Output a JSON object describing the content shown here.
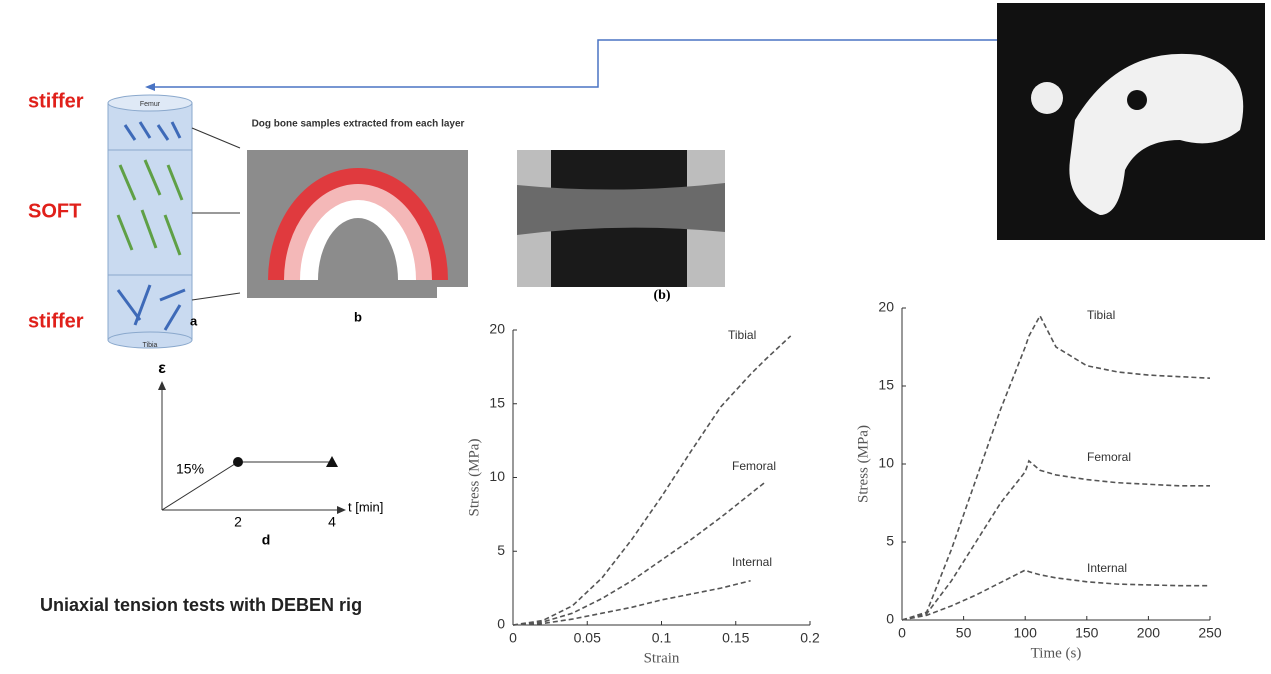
{
  "labels": {
    "top": "stiffer",
    "middle": "SOFT",
    "bottom": "stiffer",
    "femur": "Femur",
    "tibia": "Tibia",
    "panel_a": "a",
    "panel_b": "b",
    "panel_d": "d",
    "dog_bone": "Dog bone samples extracted from each layer",
    "photo_b": "(b)",
    "epsilon": "ε",
    "strain_level": "15%",
    "t_tick_1": "2",
    "t_tick_2": "4",
    "t_axis": "t [min]",
    "caption": "Uniaxial tension tests with DEBEN rig"
  },
  "chart_data": [
    {
      "type": "line",
      "xlabel": "Strain",
      "ylabel": "Stress (MPa)",
      "x": [
        0,
        0.02,
        0.04,
        0.06,
        0.08,
        0.1,
        0.12,
        0.14,
        0.16,
        0.17,
        0.187
      ],
      "series": [
        {
          "name": "Tibial",
          "color": "#555555",
          "values": [
            0,
            0.3,
            1.3,
            3.2,
            5.8,
            8.7,
            11.8,
            14.8,
            17,
            18,
            19.6
          ]
        },
        {
          "name": "Femoral",
          "color": "#555555",
          "values": [
            0,
            0.2,
            0.8,
            1.8,
            3,
            4.4,
            5.8,
            7.3,
            8.9,
            9.7,
            null
          ]
        },
        {
          "name": "Internal",
          "color": "#555555",
          "values": [
            0,
            0.1,
            0.4,
            0.8,
            1.2,
            1.7,
            2.1,
            2.5,
            3.0,
            null,
            null
          ]
        }
      ],
      "xlim": [
        0,
        0.2
      ],
      "xticks": [
        0,
        0.05,
        0.1,
        0.15,
        0.2
      ],
      "ylim": [
        0,
        20
      ],
      "yticks": [
        0,
        5,
        10,
        15,
        20
      ]
    },
    {
      "type": "line",
      "xlabel": "Time (s)",
      "ylabel": "Stress (MPa)",
      "x": [
        0,
        20,
        40,
        60,
        80,
        100,
        103,
        112,
        125,
        150,
        175,
        200,
        225,
        250
      ],
      "series": [
        {
          "name": "Tibial",
          "color": "#555555",
          "values": [
            0,
            0.5,
            4.5,
            9,
            13.5,
            17.5,
            18.2,
            19.5,
            17.5,
            16.3,
            15.9,
            15.7,
            15.6,
            15.5
          ]
        },
        {
          "name": "Femoral",
          "color": "#555555",
          "values": [
            0,
            0.4,
            2.5,
            5,
            7.5,
            9.5,
            10.2,
            9.6,
            9.3,
            9.0,
            8.8,
            8.7,
            8.6,
            8.6
          ]
        },
        {
          "name": "Internal",
          "color": "#555555",
          "values": [
            0,
            0.3,
            0.9,
            1.6,
            2.4,
            3.2,
            3.1,
            2.9,
            2.7,
            2.45,
            2.3,
            2.25,
            2.2,
            2.2
          ]
        }
      ],
      "xlim": [
        0,
        250
      ],
      "xticks": [
        0,
        50,
        100,
        150,
        200,
        250
      ],
      "ylim": [
        0,
        20
      ],
      "yticks": [
        0,
        5,
        10,
        15,
        20
      ]
    }
  ]
}
